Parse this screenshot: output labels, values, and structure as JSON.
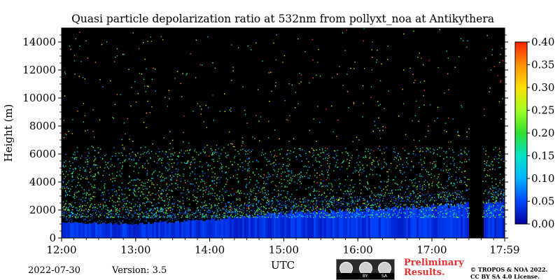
{
  "chart_data": {
    "type": "heatmap",
    "title": "Quasi particle depolarization ratio at 532nm from pollyxt_noa at Antikythera",
    "xlabel": "UTC",
    "ylabel": "Height (m)",
    "x_tick_labels": [
      "12:00",
      "13:00",
      "14:00",
      "15:00",
      "16:00",
      "17:00",
      "17:59"
    ],
    "x_tick_hours": [
      12.0,
      13.0,
      14.0,
      15.0,
      16.0,
      17.0,
      17.983
    ],
    "xlim": [
      12.0,
      17.983
    ],
    "y_ticks": [
      0,
      2000,
      4000,
      6000,
      8000,
      10000,
      12000,
      14000
    ],
    "ylim": [
      0,
      15000
    ],
    "colorbar": {
      "ticks": [
        "0.00",
        "0.05",
        "0.10",
        "0.15",
        "0.20",
        "0.25",
        "0.30",
        "0.35",
        "0.40"
      ],
      "range": [
        0.0,
        0.4
      ],
      "colors": [
        "#0000a0",
        "#0046ff",
        "#00b4ff",
        "#00e4c8",
        "#30e030",
        "#a0ff20",
        "#ffe000",
        "#ff9000",
        "#ff2000"
      ]
    },
    "background_color": "#000000",
    "layers": [
      {
        "label": "boundary layer",
        "value_range": [
          0.0,
          0.05
        ],
        "top_height_m": [
          1100,
          1000,
          1300,
          1800,
          2000,
          2200,
          2600
        ]
      },
      {
        "label": "sparse aerosol",
        "height_range_m": [
          1500,
          6500
        ],
        "value_range": [
          0.05,
          0.25
        ]
      },
      {
        "label": "noise",
        "height_range_m": [
          2000,
          15000
        ],
        "value_range": [
          0.1,
          0.4
        ]
      }
    ],
    "no_data_interval_hours": [
      17.5,
      17.68
    ]
  },
  "footer": {
    "date": "2022-07-30",
    "version": "Version: 3.5",
    "license_badge": {
      "by": "BY",
      "sa": "SA"
    },
    "preliminary": [
      "Preliminary",
      "Results."
    ],
    "copyright": [
      "© TROPOS & NOA 2022.",
      "CC BY SA 4.0 License."
    ]
  }
}
